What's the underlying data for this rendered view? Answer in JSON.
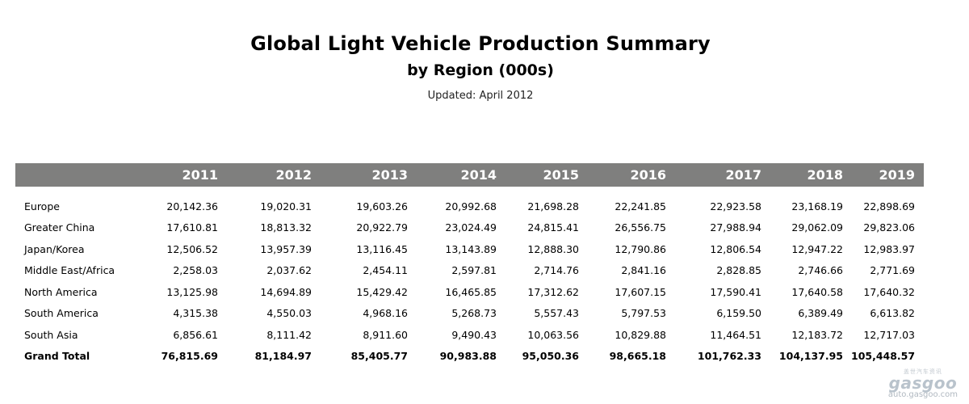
{
  "title": "Global Light Vehicle Production Summary",
  "subtitle": "by Region (000s)",
  "updated": "Updated: April 2012",
  "table": {
    "columns": [
      "2011",
      "2012",
      "2013",
      "2014",
      "2015",
      "2016",
      "2017",
      "2018",
      "2019"
    ],
    "rows": [
      {
        "region": "Europe",
        "values": [
          "20,142.36",
          "19,020.31",
          "19,603.26",
          "20,992.68",
          "21,698.28",
          "22,241.85",
          "22,923.58",
          "23,168.19",
          "22,898.69"
        ]
      },
      {
        "region": "Greater China",
        "values": [
          "17,610.81",
          "18,813.32",
          "20,922.79",
          "23,024.49",
          "24,815.41",
          "26,556.75",
          "27,988.94",
          "29,062.09",
          "29,823.06"
        ]
      },
      {
        "region": "Japan/Korea",
        "values": [
          "12,506.52",
          "13,957.39",
          "13,116.45",
          "13,143.89",
          "12,888.30",
          "12,790.86",
          "12,806.54",
          "12,947.22",
          "12,983.97"
        ]
      },
      {
        "region": "Middle East/Africa",
        "values": [
          "2,258.03",
          "2,037.62",
          "2,454.11",
          "2,597.81",
          "2,714.76",
          "2,841.16",
          "2,828.85",
          "2,746.66",
          "2,771.69"
        ]
      },
      {
        "region": "North America",
        "values": [
          "13,125.98",
          "14,694.89",
          "15,429.42",
          "16,465.85",
          "17,312.62",
          "17,607.15",
          "17,590.41",
          "17,640.58",
          "17,640.32"
        ]
      },
      {
        "region": "South America",
        "values": [
          "4,315.38",
          "4,550.03",
          "4,968.16",
          "5,268.73",
          "5,557.43",
          "5,797.53",
          "6,159.50",
          "6,389.49",
          "6,613.82"
        ]
      },
      {
        "region": "South Asia",
        "values": [
          "6,856.61",
          "8,111.42",
          "8,911.60",
          "9,490.43",
          "10,063.56",
          "10,829.88",
          "11,464.51",
          "12,183.72",
          "12,717.03"
        ]
      }
    ],
    "total": {
      "region": "Grand Total",
      "values": [
        "76,815.69",
        "81,184.97",
        "85,405.77",
        "90,983.88",
        "95,050.36",
        "98,665.18",
        "101,762.33",
        "104,137.95",
        "105,448.57"
      ]
    }
  },
  "watermark": {
    "chinese": "盖世汽车资讯",
    "logo": "gasgoo",
    "url": "auto.gasgoo.com"
  },
  "colors": {
    "header_bg": "#7f7f7e",
    "header_text": "#ffffff"
  }
}
